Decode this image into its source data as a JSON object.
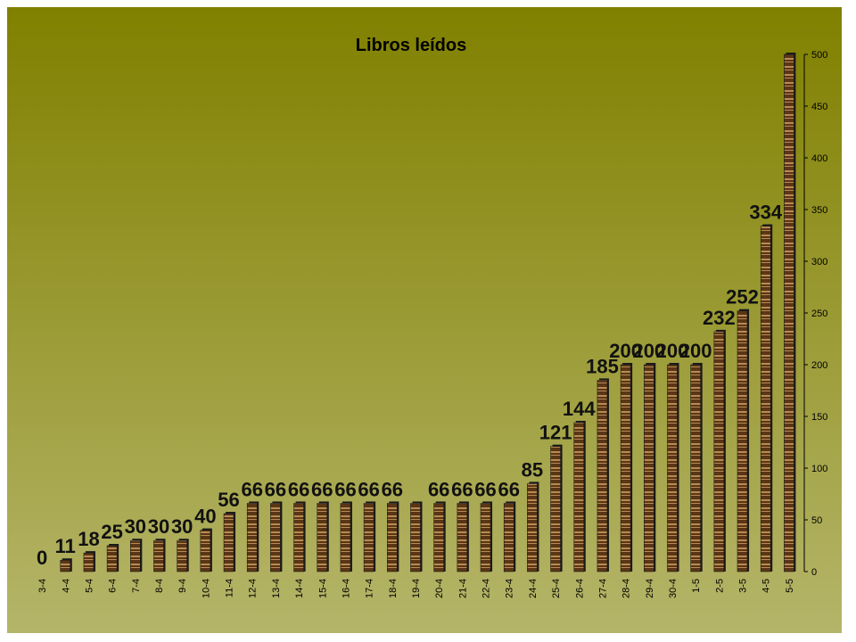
{
  "chart_data": {
    "type": "bar",
    "title": "Libros leídos",
    "categories": [
      "3-4",
      "4-4",
      "5-4",
      "6-4",
      "7-4",
      "8-4",
      "9-4",
      "10-4",
      "11-4",
      "12-4",
      "13-4",
      "14-4",
      "15-4",
      "16-4",
      "17-4",
      "18-4",
      "19-4",
      "20-4",
      "21-4",
      "22-4",
      "23-4",
      "24-4",
      "25-4",
      "26-4",
      "27-4",
      "28-4",
      "29-4",
      "30-4",
      "1-5",
      "2-5",
      "3-5",
      "4-5",
      "5-5"
    ],
    "values": [
      0,
      11,
      18,
      25,
      30,
      30,
      30,
      40,
      56,
      66,
      66,
      66,
      66,
      66,
      66,
      66,
      66,
      66,
      66,
      66,
      66,
      85,
      121,
      144,
      185,
      200,
      200,
      200,
      200,
      232,
      252,
      334,
      500
    ],
    "data_labels": [
      "0",
      "11",
      "18",
      "25",
      "30",
      "30",
      "30",
      "40",
      "56",
      "66",
      "66",
      "66",
      "66",
      "66",
      "66",
      "66",
      "",
      "66",
      "66",
      "66",
      "66",
      "85",
      "121",
      "144",
      "185",
      "200",
      "200",
      "200",
      "200",
      "232",
      "252",
      "334",
      ""
    ],
    "ylim": [
      0,
      500
    ],
    "yticks": [
      0,
      50,
      100,
      150,
      200,
      250,
      300,
      350,
      400,
      450,
      500
    ],
    "y_axis_position": "right",
    "grid": false,
    "legend": "none",
    "colors": {
      "background_top": "#808000",
      "background_bottom": "#b5b56a",
      "bar_dark": "#5a3616",
      "bar_light": "#b98a52",
      "bar_shadow": "#1a1a1a"
    }
  }
}
